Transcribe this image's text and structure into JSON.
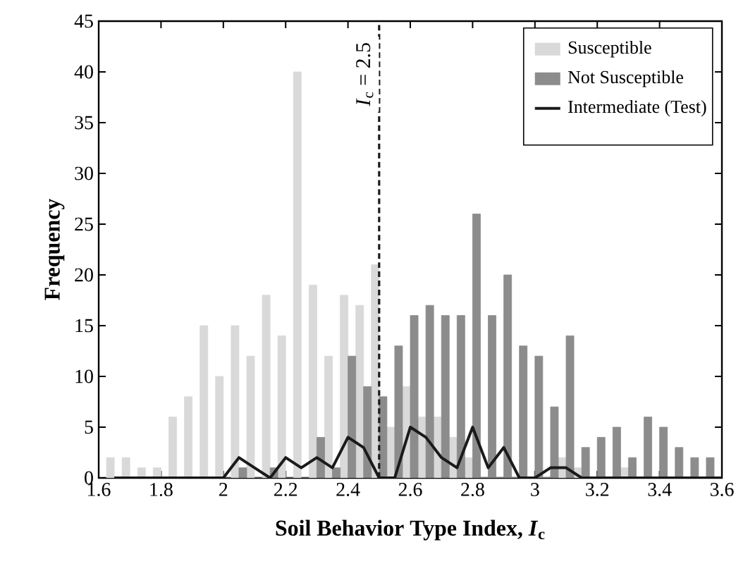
{
  "chart_data": {
    "type": "bar",
    "xlabel": "**Soil Behavior Type Index, *I*$_{c}$**",
    "ylabel": "**Frequency**",
    "x": [
      1.65,
      1.7,
      1.75,
      1.8,
      1.85,
      1.9,
      1.95,
      2.0,
      2.05,
      2.1,
      2.15,
      2.2,
      2.25,
      2.3,
      2.35,
      2.4,
      2.45,
      2.5,
      2.55,
      2.6,
      2.65,
      2.7,
      2.75,
      2.8,
      2.85,
      2.9,
      2.95,
      3.0,
      3.05,
      3.1,
      3.15,
      3.2,
      3.25,
      3.3,
      3.35,
      3.4,
      3.45,
      3.5,
      3.55,
      3.6
    ],
    "series": [
      {
        "name": "Susceptible",
        "color": "#d9d9d9",
        "values": [
          2,
          2,
          1,
          1,
          6,
          8,
          15,
          10,
          15,
          12,
          18,
          14,
          40,
          19,
          12,
          18,
          17,
          21,
          5,
          9,
          6,
          6,
          4,
          2,
          0,
          0,
          0,
          0,
          0,
          2,
          1,
          0,
          0,
          1,
          0,
          0,
          0,
          0,
          0,
          0
        ]
      },
      {
        "name": "Not Susceptible",
        "color": "#8c8c8c",
        "values": [
          0,
          0,
          0,
          0,
          0,
          0,
          0,
          0,
          1,
          0,
          1,
          0,
          0,
          4,
          1,
          12,
          9,
          8,
          13,
          16,
          17,
          16,
          16,
          26,
          16,
          20,
          13,
          12,
          7,
          14,
          3,
          4,
          5,
          2,
          6,
          5,
          3,
          2,
          2,
          null
        ]
      },
      {
        "name": "Intermediate (Test)",
        "type": "line",
        "color": "#1a1a1a",
        "values": [
          0,
          0,
          0,
          0,
          0,
          0,
          0,
          0,
          2,
          1,
          0,
          2,
          1,
          2,
          1,
          4,
          3,
          0,
          0,
          5,
          4,
          2,
          1,
          5,
          1,
          3,
          0,
          0,
          1,
          1,
          0,
          0,
          0,
          0,
          0,
          0,
          0,
          0,
          0,
          0
        ]
      }
    ],
    "xlim": [
      1.6,
      3.6
    ],
    "xticks": [
      1.6,
      1.8,
      2,
      2.2,
      2.4,
      2.6,
      2.8,
      3,
      3.2,
      3.4,
      3.6
    ],
    "ylim": [
      0,
      45
    ],
    "yticks": [
      0,
      5,
      10,
      15,
      20,
      25,
      30,
      35,
      40,
      45
    ],
    "ref_lines": [
      {
        "axis": "x",
        "value": 2.5,
        "label": "*I*$_{c}$ = 2.5",
        "line_style": "dashed",
        "color": "#1a1a1a"
      }
    ],
    "legend": "top right",
    "grid": false
  }
}
